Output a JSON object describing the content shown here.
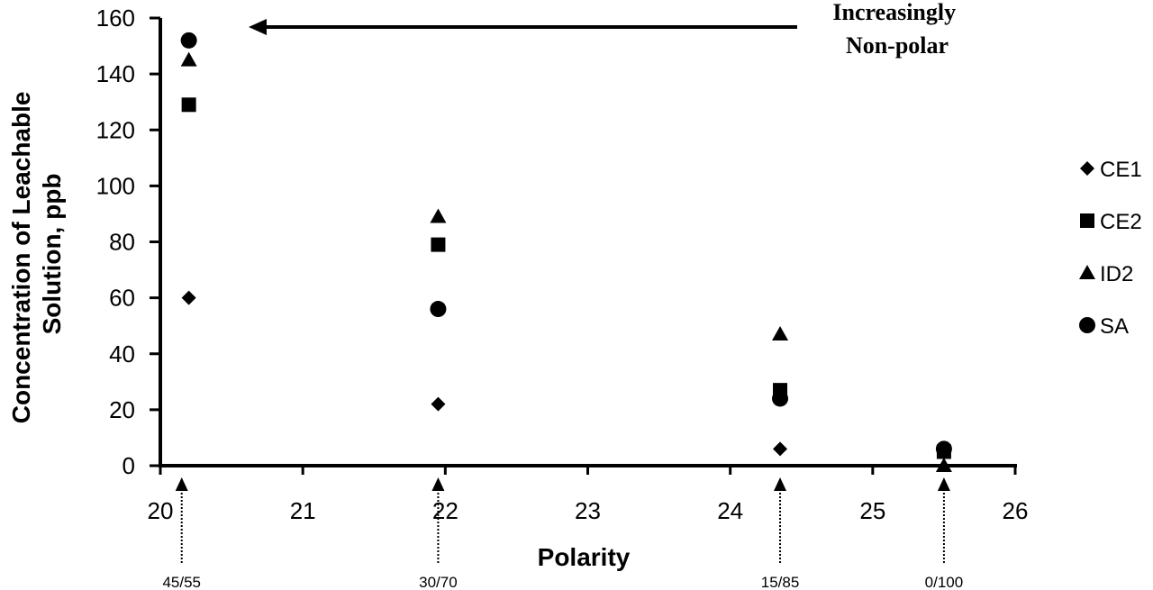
{
  "chart_data": {
    "type": "scatter",
    "xlabel": "Polarity",
    "ylabel": "Concentration of Leachable Solution, ppb",
    "ylabel_lines": [
      "Concentration of Leachable",
      "Solution, ppb"
    ],
    "xlim": [
      20,
      26
    ],
    "ylim": [
      0,
      160
    ],
    "x_ticks": [
      "20",
      "21",
      "22",
      "23",
      "24",
      "25",
      "26"
    ],
    "y_ticks": [
      "0",
      "20",
      "40",
      "60",
      "80",
      "100",
      "120",
      "140",
      "160"
    ],
    "grid": false,
    "legend_position": "right",
    "series": [
      {
        "name": "CE1",
        "marker": "diamond",
        "x": [
          20.2,
          21.95,
          24.35,
          25.5
        ],
        "y": [
          60,
          22,
          6,
          5
        ]
      },
      {
        "name": "CE2",
        "marker": "square",
        "x": [
          20.2,
          21.95,
          24.35,
          25.5
        ],
        "y": [
          129,
          79,
          27,
          5
        ]
      },
      {
        "name": "ID2",
        "marker": "triangle",
        "x": [
          20.2,
          21.95,
          24.35,
          25.5
        ],
        "y": [
          145,
          89,
          47,
          0
        ]
      },
      {
        "name": "SA",
        "marker": "circle",
        "x": [
          20.2,
          21.95,
          24.35,
          25.5
        ],
        "y": [
          152,
          56,
          24,
          6
        ]
      }
    ],
    "composition_markers": [
      {
        "x": 20.15,
        "label": "45/55"
      },
      {
        "x": 21.95,
        "label": "30/70"
      },
      {
        "x": 24.35,
        "label": "15/85"
      },
      {
        "x": 25.5,
        "label": "0/100"
      }
    ],
    "annotation": {
      "lines": [
        "Increasingly",
        "Non-polar"
      ],
      "arrow_direction": "left"
    }
  }
}
